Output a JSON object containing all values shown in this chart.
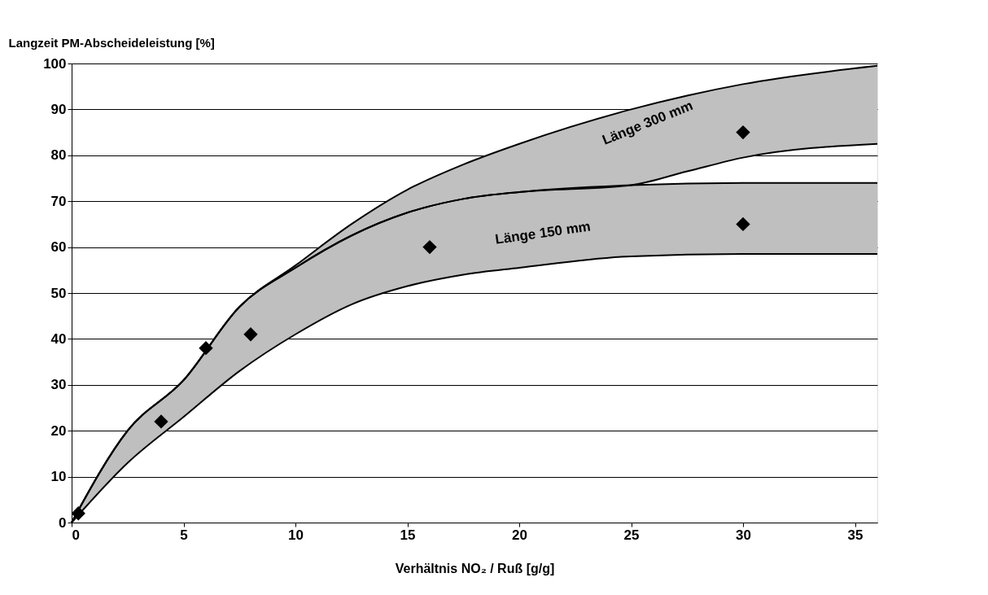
{
  "chart_data": {
    "type": "line",
    "ylabel": "Langzeit PM-Abscheideleistung [%]",
    "xlabel": "Verhältnis NO₂ / Ruß [g/g]",
    "xlim": [
      0,
      36
    ],
    "ylim": [
      0,
      100
    ],
    "xticks": [
      0,
      5,
      10,
      15,
      20,
      25,
      30,
      35
    ],
    "yticks": [
      0,
      10,
      20,
      30,
      40,
      50,
      60,
      70,
      80,
      90,
      100
    ],
    "grid": "y",
    "series": [
      {
        "color": "#000000",
        "x": [
          0,
          2.5,
          5,
          7.5,
          10,
          12.5,
          15,
          17.5,
          20,
          25,
          27.5,
          30,
          36
        ],
        "values": [
          0,
          20,
          31,
          47,
          56,
          65,
          72.5,
          78,
          82.5,
          90,
          93,
          95.5,
          99.5
        ]
      },
      {
        "color": "#000000",
        "x": [
          0,
          2.5,
          5,
          7.5,
          10,
          12.5,
          15,
          17.5,
          20,
          25,
          27.5,
          30,
          36
        ],
        "values": [
          0,
          20,
          31,
          47,
          55.5,
          62.5,
          67.5,
          70.5,
          72,
          73.5,
          76.5,
          79.5,
          82.5
        ],
        "lower": [
          0,
          20,
          31,
          47,
          55.5,
          62.5,
          67.5,
          70.5,
          72,
          73.5,
          76.5,
          79.5,
          82.5
        ],
        "upper": [
          0,
          20,
          31,
          47,
          56,
          65,
          72.5,
          78,
          82.5,
          90,
          93,
          95.5,
          99.5
        ]
      },
      {
        "color": "#000000",
        "x": [
          0,
          2.5,
          5,
          7.5,
          10,
          12.5,
          15,
          17.5,
          20,
          25,
          30,
          36
        ],
        "values": [
          0,
          20,
          31,
          47,
          55.5,
          62.5,
          67.5,
          70.5,
          72,
          73.5,
          74,
          74
        ]
      },
      {
        "color": "#000000",
        "x": [
          0,
          2.5,
          5,
          7.5,
          10,
          12.5,
          15,
          17.5,
          20,
          25,
          30,
          36
        ],
        "values": [
          0,
          13,
          23,
          33,
          41,
          47.5,
          51.5,
          54,
          55.5,
          58,
          58.5,
          58.5
        ],
        "lower": [
          0,
          13,
          23,
          33,
          41,
          47.5,
          51.5,
          54,
          55.5,
          58,
          58.5,
          58.5
        ],
        "upper": [
          0,
          20,
          31,
          47,
          55.5,
          62.5,
          67.5,
          70.5,
          72,
          73.5,
          74,
          74
        ]
      },
      {
        "type": "scatter",
        "color": "#000000",
        "marker": "diamond",
        "x": [
          0.3,
          4,
          6,
          8,
          16,
          30,
          30
        ],
        "values": [
          2,
          22,
          38,
          41,
          60,
          65,
          85
        ]
      }
    ],
    "annotations": [
      "Länge 300 mm",
      "Länge 150 mm"
    ]
  }
}
